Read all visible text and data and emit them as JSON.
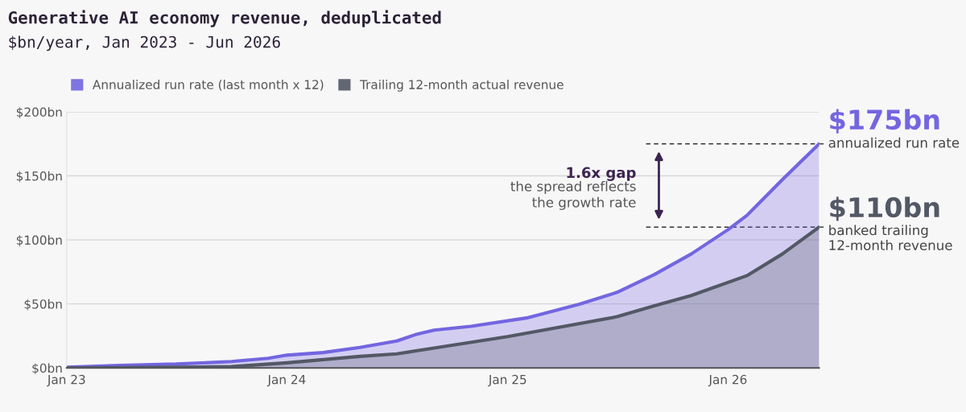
{
  "chart_data": {
    "type": "area",
    "title": "Generative AI economy revenue, deduplicated",
    "subtitle": "$bn/year, Jan 2023 - Jun 2026",
    "series": [
      {
        "name": "Annualized run rate (last month x 12)",
        "color": "#7366e0",
        "x": [
          "2023-01",
          "2023-04",
          "2023-07",
          "2023-10",
          "2023-12",
          "2024-01",
          "2024-03",
          "2024-05",
          "2024-07",
          "2024-08",
          "2024-09",
          "2024-11",
          "2025-02",
          "2025-05",
          "2025-07",
          "2025-09",
          "2025-11",
          "2026-01",
          "2026-02",
          "2026-04",
          "2026-06"
        ],
        "values": [
          0.5,
          2,
          3,
          5,
          7.5,
          10,
          12,
          16,
          21,
          26,
          29.5,
          32.5,
          39,
          50,
          59,
          73,
          89,
          108,
          119,
          147,
          175
        ]
      },
      {
        "name": "Trailing 12-month actual revenue",
        "color": "#535865",
        "x": [
          "2023-01",
          "2023-07",
          "2023-10",
          "2024-01",
          "2024-05",
          "2024-07",
          "2024-09",
          "2025-01",
          "2025-03",
          "2025-07",
          "2025-09",
          "2025-11",
          "2026-02",
          "2026-04",
          "2026-06"
        ],
        "values": [
          0,
          0.5,
          1,
          4,
          9,
          11,
          15.5,
          24.5,
          29.5,
          40,
          48.5,
          56.5,
          72,
          89,
          110
        ]
      }
    ],
    "xlim": [
      "2023-01",
      "2026-06"
    ],
    "xticks": [
      {
        "value": "2023-01",
        "label": "Jan 23"
      },
      {
        "value": "2024-01",
        "label": "Jan 24"
      },
      {
        "value": "2025-01",
        "label": "Jan 25"
      },
      {
        "value": "2026-01",
        "label": "Jan 26"
      }
    ],
    "ylim": [
      0,
      200
    ],
    "yticks": [
      {
        "value": 0,
        "label": "$0bn"
      },
      {
        "value": 50,
        "label": "$50bn"
      },
      {
        "value": 100,
        "label": "$100bn"
      },
      {
        "value": 150,
        "label": "$150bn"
      },
      {
        "value": 200,
        "label": "$200bn"
      }
    ],
    "grid": "y",
    "legend": "top left",
    "ref_lines": [
      {
        "axis": "y",
        "value": 175,
        "color": "#333333",
        "line_style": "dashed"
      },
      {
        "axis": "y",
        "value": 110,
        "color": "#333333",
        "line_style": "dashed"
      }
    ],
    "annotations": [
      {
        "text": "$175bn",
        "x": "2026-06",
        "y": 175
      },
      {
        "text": "annualized run rate",
        "x": "2026-06",
        "y": 175
      },
      {
        "text": "$110bn",
        "x": "2026-06",
        "y": 110
      },
      {
        "text": "banked trailing\n12-month revenue",
        "x": "2026-06",
        "y": 110
      },
      "1.6x gap",
      "the spread reflects\nthe growth rate"
    ]
  }
}
